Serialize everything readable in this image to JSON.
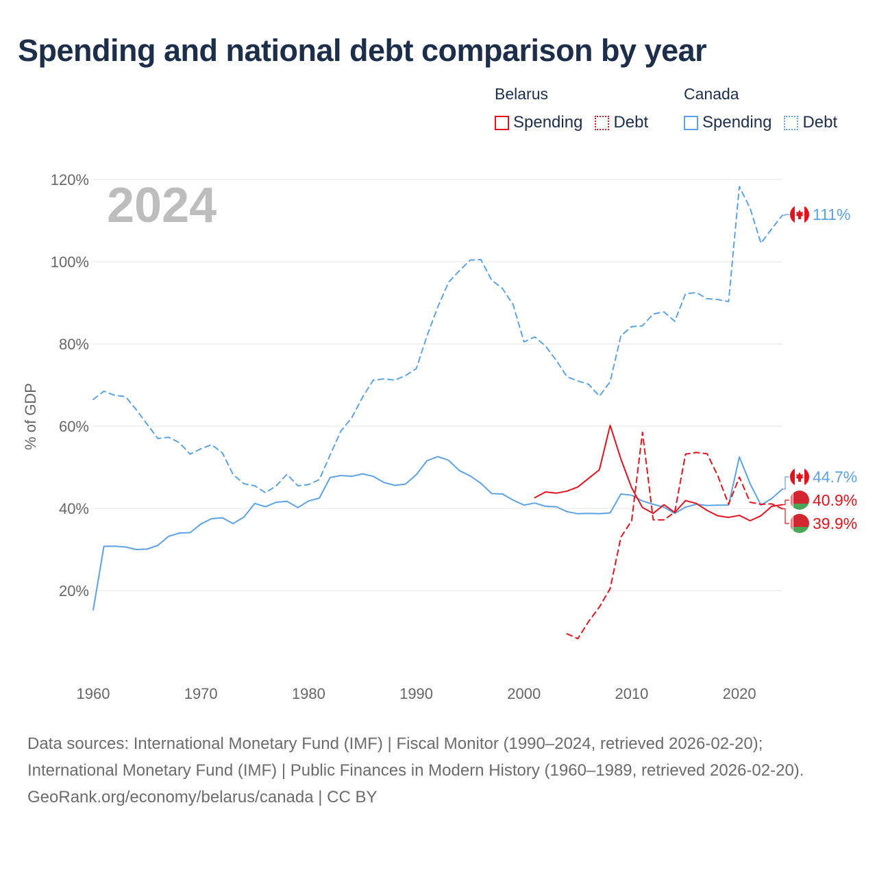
{
  "title": "Spending and national debt comparison by year",
  "legend": {
    "groups": [
      {
        "country": "Belarus",
        "color": "#e3121b",
        "items": [
          {
            "label": "Spending",
            "style": "solid"
          },
          {
            "label": "Debt",
            "style": "dotted"
          }
        ]
      },
      {
        "country": "Canada",
        "color": "#5ba3e6",
        "items": [
          {
            "label": "Spending",
            "style": "solid"
          },
          {
            "label": "Debt",
            "style": "dotted"
          }
        ]
      }
    ]
  },
  "year_watermark": "2024",
  "footer": {
    "sources": "Data sources: International Monetary Fund (IMF) | Fiscal Monitor (1990–2024, retrieved 2026-02-20); International Monetary Fund (IMF) | Public Finances in Modern History (1960–1989, retrieved 2026-02-20).",
    "url": "GeoRank.org/economy/belarus/canada | CC BY"
  },
  "chart_data": {
    "type": "line",
    "title": "Spending and national debt comparison by year",
    "xlabel": "",
    "ylabel": "% of GDP",
    "xlim": [
      1960,
      2024
    ],
    "ylim": [
      0,
      120
    ],
    "xticks": [
      1960,
      1970,
      1980,
      1990,
      2000,
      2010,
      2020
    ],
    "yticks": [
      20,
      40,
      60,
      80,
      100,
      120
    ],
    "ytick_labels": [
      "20%",
      "40%",
      "60%",
      "80%",
      "100%",
      "120%"
    ],
    "grid": true,
    "legend_position": "top-right",
    "series": [
      {
        "name": "Canada Debt",
        "country": "Canada",
        "measure": "Debt",
        "color": "#5ba3e6",
        "dash": "dashed",
        "x": [
          1960,
          1961,
          1962,
          1963,
          1964,
          1965,
          1966,
          1967,
          1968,
          1969,
          1970,
          1971,
          1972,
          1973,
          1974,
          1975,
          1976,
          1977,
          1978,
          1979,
          1980,
          1981,
          1982,
          1983,
          1984,
          1985,
          1986,
          1987,
          1988,
          1989,
          1990,
          1991,
          1992,
          1993,
          1994,
          1995,
          1996,
          1997,
          1998,
          1999,
          2000,
          2001,
          2002,
          2003,
          2004,
          2005,
          2006,
          2007,
          2008,
          2009,
          2010,
          2011,
          2012,
          2013,
          2014,
          2015,
          2016,
          2017,
          2018,
          2019,
          2020,
          2021,
          2022,
          2023,
          2024
        ],
        "y": [
          66.5,
          68.5,
          67.5,
          67.2,
          64,
          60.5,
          57,
          57.3,
          56,
          53.2,
          54.5,
          55.5,
          53.5,
          48.2,
          46,
          45.5,
          43.8,
          45.5,
          48.3,
          45.5,
          45.8,
          47,
          53,
          58.8,
          62,
          67,
          71.2,
          71.5,
          71.2,
          72.3,
          74,
          82,
          89,
          95,
          97.8,
          100.4,
          100.5,
          95.5,
          93.5,
          89.5,
          80.5,
          81.7,
          79.5,
          76,
          72,
          71,
          70.2,
          67.3,
          70.8,
          82,
          84.2,
          84.4,
          87.3,
          87.8,
          85.5,
          92.2,
          92.5,
          91,
          90.8,
          90.3,
          118.3,
          113,
          104.5,
          108,
          111.3
        ],
        "end_label": "111%"
      },
      {
        "name": "Canada Spending",
        "country": "Canada",
        "measure": "Spending",
        "color": "#5ba3e6",
        "dash": "solid",
        "x": [
          1960,
          1961,
          1962,
          1963,
          1964,
          1965,
          1966,
          1967,
          1968,
          1969,
          1970,
          1971,
          1972,
          1973,
          1974,
          1975,
          1976,
          1977,
          1978,
          1979,
          1980,
          1981,
          1982,
          1983,
          1984,
          1985,
          1986,
          1987,
          1988,
          1989,
          1990,
          1991,
          1992,
          1993,
          1994,
          1995,
          1996,
          1997,
          1998,
          1999,
          2000,
          2001,
          2002,
          2003,
          2004,
          2005,
          2006,
          2007,
          2008,
          2009,
          2010,
          2011,
          2012,
          2013,
          2014,
          2015,
          2016,
          2017,
          2018,
          2019,
          2020,
          2021,
          2022,
          2023,
          2024
        ],
        "y": [
          15.3,
          30.8,
          30.8,
          30.6,
          30,
          30.1,
          31,
          33.2,
          34,
          34.1,
          36.2,
          37.5,
          37.7,
          36.3,
          37.9,
          41.2,
          40.4,
          41.5,
          41.7,
          40.2,
          41.8,
          42.5,
          47.5,
          48,
          47.8,
          48.4,
          47.8,
          46.3,
          45.6,
          45.9,
          48.2,
          51.6,
          52.6,
          51.7,
          49.2,
          47.9,
          46.1,
          43.6,
          43.5,
          42,
          40.8,
          41.3,
          40.5,
          40.4,
          39.2,
          38.7,
          38.8,
          38.7,
          38.9,
          43.5,
          43.2,
          41.8,
          41,
          40.3,
          38.8,
          40.3,
          41,
          40.7,
          40.8,
          40.8,
          52.5,
          46,
          40.8,
          42.4,
          44.7
        ],
        "end_label": "44.7%"
      },
      {
        "name": "Belarus Spending",
        "country": "Belarus",
        "measure": "Spending",
        "color": "#e3121b",
        "dash": "solid",
        "x": [
          2001,
          2002,
          2003,
          2004,
          2005,
          2006,
          2007,
          2008,
          2009,
          2010,
          2011,
          2012,
          2013,
          2014,
          2015,
          2016,
          2017,
          2018,
          2019,
          2020,
          2021,
          2022,
          2023,
          2024
        ],
        "y": [
          42.6,
          44,
          43.7,
          44.2,
          45.2,
          47.3,
          49.4,
          60.2,
          52,
          45,
          40.2,
          38.8,
          40.9,
          39,
          41.9,
          41.2,
          39.5,
          38.2,
          37.8,
          38.3,
          37,
          38.2,
          40.5,
          40.9
        ],
        "end_label": "40.9%"
      },
      {
        "name": "Belarus Debt",
        "country": "Belarus",
        "measure": "Debt",
        "color": "#e3121b",
        "dash": "dashed",
        "x": [
          2004,
          2005,
          2006,
          2007,
          2008,
          2009,
          2010,
          2011,
          2012,
          2013,
          2014,
          2015,
          2016,
          2017,
          2018,
          2019,
          2020,
          2021,
          2022,
          2023,
          2024
        ],
        "y": [
          9.5,
          8.3,
          12.5,
          16,
          20.5,
          33,
          37,
          58.5,
          37.2,
          37.2,
          39.1,
          53.2,
          53.6,
          53.3,
          47.9,
          41,
          47.6,
          41.5,
          41,
          41.1,
          39.9
        ],
        "end_label": "39.9%"
      }
    ]
  }
}
